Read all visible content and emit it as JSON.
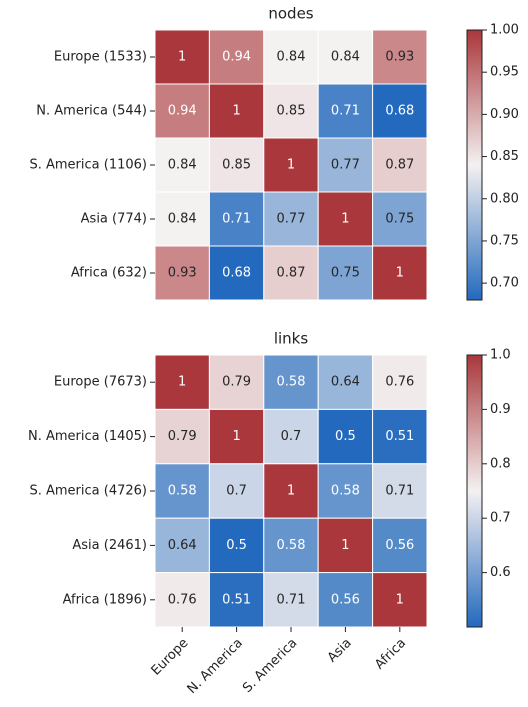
{
  "chart_data": [
    {
      "type": "heatmap",
      "title": "nodes",
      "y_categories": [
        "Europe (1533)",
        "N. America (544)",
        "S. America (1106)",
        "Asia (774)",
        "Africa (632)"
      ],
      "values": [
        [
          1,
          0.94,
          0.84,
          0.84,
          0.93
        ],
        [
          0.94,
          1,
          0.85,
          0.71,
          0.68
        ],
        [
          0.84,
          0.85,
          1,
          0.77,
          0.87
        ],
        [
          0.84,
          0.71,
          0.77,
          1,
          0.75
        ],
        [
          0.93,
          0.68,
          0.87,
          0.75,
          1
        ]
      ],
      "colormap": [
        "#2369bd",
        "#f4f1f1",
        "#a9373b"
      ],
      "clim": [
        0.68,
        1.0
      ],
      "cticks": [
        {
          "value": 0.7,
          "label": "0.70"
        },
        0.75,
        {
          "value": 0.8,
          "label": "0.80"
        },
        0.85,
        {
          "value": 0.9,
          "label": "0.90"
        },
        0.95,
        {
          "value": 1.0,
          "label": "1.00"
        }
      ]
    },
    {
      "type": "heatmap",
      "title": "links",
      "x_categories": [
        "Europe",
        "N. America",
        "S. America",
        "Asia",
        "Africa"
      ],
      "y_categories": [
        "Europe (7673)",
        "N. America (1405)",
        "S. America (4726)",
        "Asia (2461)",
        "Africa (1896)"
      ],
      "values": [
        [
          1,
          0.79,
          0.58,
          0.64,
          0.76
        ],
        [
          0.79,
          1,
          0.7,
          0.5,
          0.51
        ],
        [
          0.58,
          0.7,
          1,
          0.58,
          0.71
        ],
        [
          0.64,
          0.5,
          0.58,
          1,
          0.56
        ],
        [
          0.76,
          0.51,
          0.71,
          0.56,
          1
        ]
      ],
      "colormap": [
        "#2369bd",
        "#f4f1f1",
        "#a9373b"
      ],
      "clim": [
        0.5,
        1.0
      ],
      "cticks": [
        0.6,
        0.7,
        0.8,
        0.9,
        {
          "value": 1.0,
          "label": "1.0"
        }
      ]
    }
  ]
}
